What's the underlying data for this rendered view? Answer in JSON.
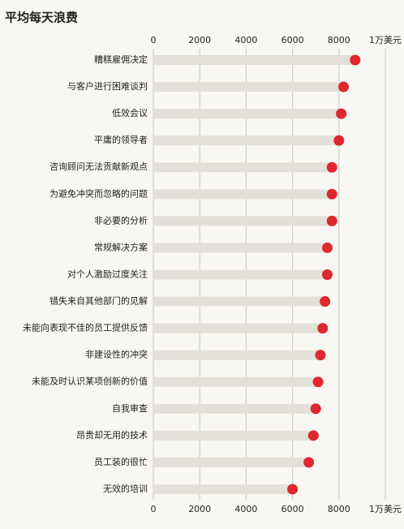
{
  "chart_data": {
    "type": "dot-bar",
    "title": "平均每天浪费",
    "categories": [
      "糟糕雇佣决定",
      "与客户进行困难谈判",
      "低效会议",
      "平庸的领导者",
      "咨询顾问无法贡献新观点",
      "为避免冲突而忽略的问题",
      "非必要的分析",
      "常规解决方案",
      "对个人激励过度关注",
      "错失来自其他部门的见解",
      "未能向表现不佳的员工提供反馈",
      "非建设性的冲突",
      "未能及时认识某项创新的价值",
      "自我审查",
      "昂贵却无用的技术",
      "员工装的很忙",
      "无效的培训"
    ],
    "values": [
      8700,
      8200,
      8100,
      8000,
      7700,
      7700,
      7700,
      7500,
      7500,
      7400,
      7300,
      7200,
      7100,
      7000,
      6900,
      6700,
      6000
    ],
    "color": "#e0262e",
    "bar_color": "#e2e0d8",
    "xlim": [
      0,
      10000
    ],
    "xticks": [
      0,
      2000,
      4000,
      6000,
      8000,
      {
        "value": 10000,
        "label": "1万美元"
      }
    ],
    "grid": true
  }
}
